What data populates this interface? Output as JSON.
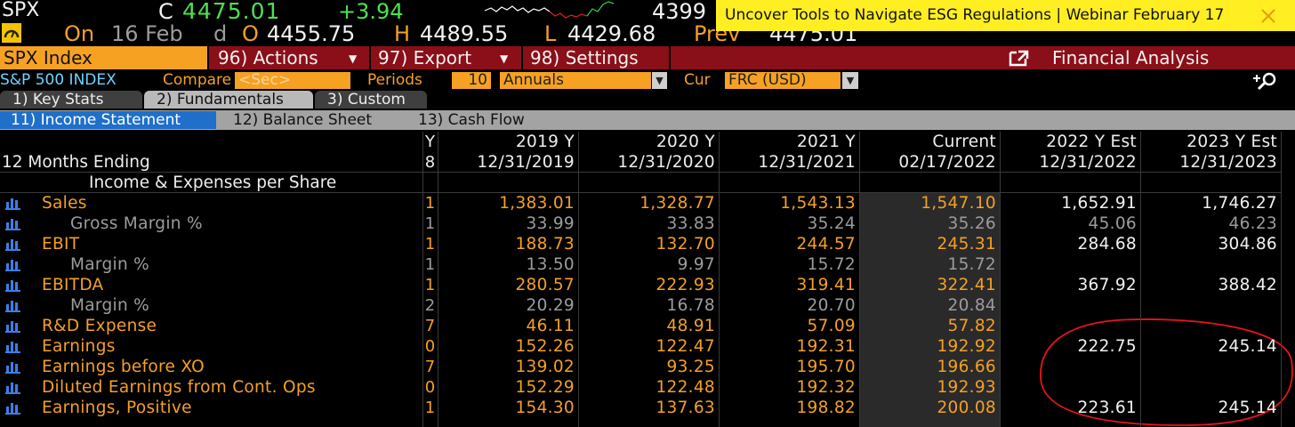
{
  "header": {
    "ticker": "SPX",
    "last_label": "C",
    "last": "4475.01",
    "change": "+3.94",
    "other": "4399",
    "banner": "Uncover Tools to Navigate ESG Regulations | Webinar February 17"
  },
  "quote_line": {
    "on": "On",
    "date": "16 Feb",
    "flag": "d",
    "open_label": "O",
    "open": "4455.75",
    "high_label": "H",
    "high": "4489.55",
    "low_label": "L",
    "low": "4429.68",
    "prev_label": "Prev",
    "prev": "4475.01"
  },
  "toolbar": {
    "security": "SPX Index",
    "actions": "96) Actions",
    "export": "97) Export",
    "settings": "98) Settings",
    "title": "Financial Analysis"
  },
  "filters": {
    "name": "S&P 500 INDEX",
    "compare_label": "Compare",
    "compare": "<Sec>",
    "periods_label": "Periods",
    "periods": "10",
    "period_type": "Annuals",
    "cur_label": "Cur",
    "currency": "FRC (USD)"
  },
  "tabs": [
    "1) Key Stats",
    "2) Fundamentals",
    "3) Custom"
  ],
  "subtabs": [
    "11) Income Statement",
    "12) Balance Sheet",
    "13) Cash Flow"
  ],
  "table": {
    "y_header": "Y",
    "y_sub": "8",
    "row_label_header": "12 Months Ending",
    "section": "Income & Expenses per Share",
    "columns": [
      {
        "period": "2019 Y",
        "date": "12/31/2019"
      },
      {
        "period": "2020 Y",
        "date": "12/31/2020"
      },
      {
        "period": "2021 Y",
        "date": "12/31/2021"
      },
      {
        "period": "Current",
        "date": "02/17/2022"
      },
      {
        "period": "2022 Y Est",
        "date": "12/31/2022"
      },
      {
        "period": "2023 Y Est",
        "date": "12/31/2023"
      }
    ],
    "rows": [
      {
        "label": "Sales",
        "y": "1",
        "values": [
          "1,383.01",
          "1,328.77",
          "1,543.13",
          "1,547.10",
          "1,652.91",
          "1,746.27"
        ]
      },
      {
        "label": "Gross Margin %",
        "y": "1",
        "values": [
          "33.99",
          "33.83",
          "35.24",
          "35.26",
          "45.06",
          "46.23"
        ]
      },
      {
        "label": "EBIT",
        "y": "1",
        "values": [
          "188.73",
          "132.70",
          "244.57",
          "245.31",
          "284.68",
          "304.86"
        ]
      },
      {
        "label": "Margin %",
        "y": "1",
        "values": [
          "13.50",
          "9.97",
          "15.72",
          "15.72",
          null,
          null
        ]
      },
      {
        "label": "EBITDA",
        "y": "1",
        "values": [
          "280.57",
          "222.93",
          "319.41",
          "322.41",
          "367.92",
          "388.42"
        ]
      },
      {
        "label": "Margin %",
        "y": "2",
        "values": [
          "20.29",
          "16.78",
          "20.70",
          "20.84",
          null,
          null
        ]
      },
      {
        "label": "R&D Expense",
        "y": "7",
        "values": [
          "46.11",
          "48.91",
          "57.09",
          "57.82",
          null,
          null
        ]
      },
      {
        "label": "Earnings",
        "y": "0",
        "values": [
          "152.26",
          "122.47",
          "192.31",
          "192.92",
          "222.75",
          "245.14"
        ]
      },
      {
        "label": "Earnings before XO",
        "y": "7",
        "values": [
          "139.02",
          "93.25",
          "195.70",
          "196.66",
          null,
          null
        ]
      },
      {
        "label": "Diluted Earnings from Cont. Ops",
        "y": "0",
        "values": [
          "152.29",
          "122.48",
          "192.32",
          "192.93",
          null,
          null
        ]
      },
      {
        "label": "Earnings, Positive",
        "y": "1",
        "values": [
          "154.30",
          "137.63",
          "198.82",
          "200.08",
          "223.61",
          "245.14"
        ]
      }
    ]
  }
}
